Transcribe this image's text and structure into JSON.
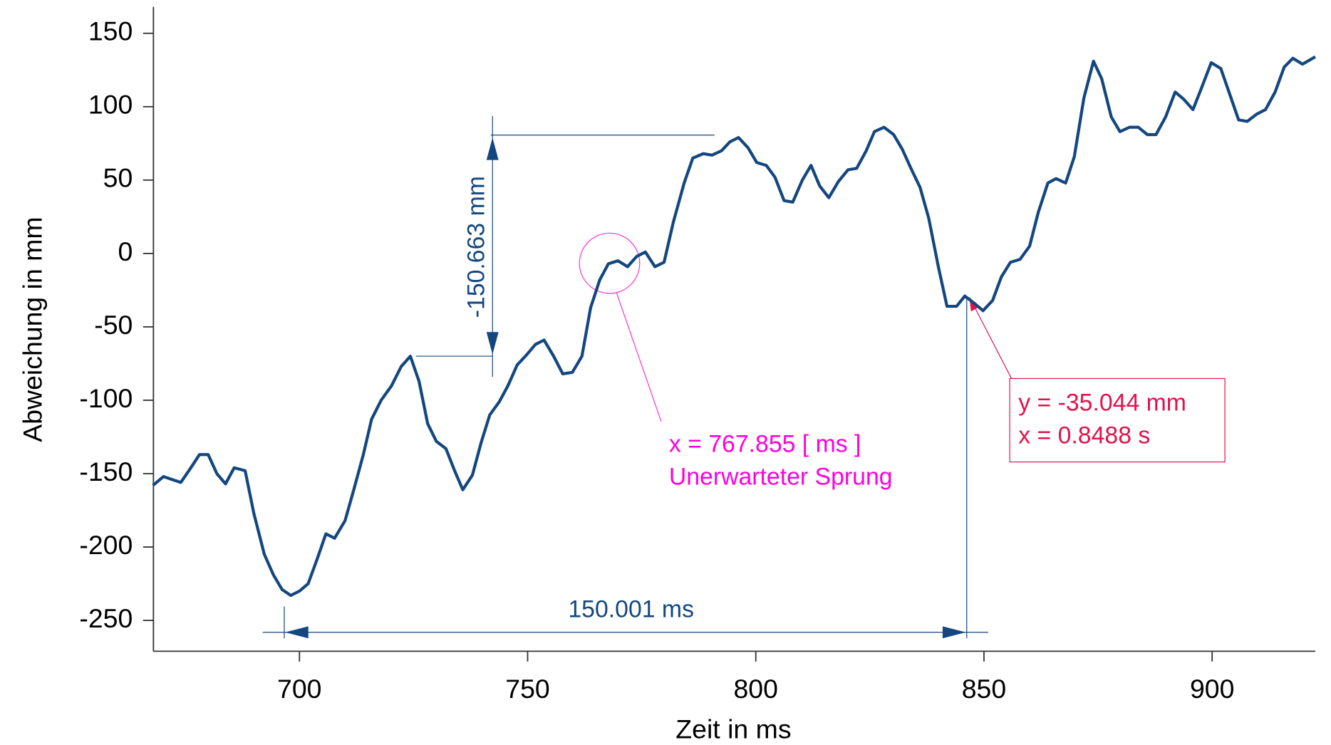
{
  "chart_data": {
    "type": "line",
    "x_label": "Zeit in ms",
    "y_label": "Abweichung in mm",
    "color": "#14477f",
    "x": [
      667.9,
      670.2,
      672.1,
      674,
      676.2,
      678.1,
      680,
      681.9,
      683.8,
      685.7,
      688.1,
      690,
      692.3,
      694.3,
      696.2,
      698.1,
      700,
      701.9,
      703.9,
      705.8,
      707.7,
      710,
      711.9,
      714,
      715.8,
      717.9,
      720.2,
      722.3,
      724.3,
      726.2,
      728.1,
      730,
      732.1,
      734,
      735.8,
      737.9,
      739.8,
      741.7,
      743.8,
      745.7,
      747.7,
      749.8,
      751.7,
      753.6,
      755.7,
      757.7,
      759.8,
      761.9,
      763.8,
      765.8,
      767.7,
      769.8,
      771.9,
      773.9,
      775.8,
      777.9,
      779.9,
      781.9,
      784.3,
      786.2,
      788.5,
      790.4,
      792.5,
      794.3,
      796.2,
      798.3,
      800.2,
      802.3,
      804.2,
      806.2,
      808.1,
      810.2,
      812.1,
      814,
      816,
      818.1,
      820.2,
      822.1,
      824.2,
      826,
      828.1,
      830.2,
      832.1,
      834,
      836,
      837.9,
      840,
      841.9,
      844,
      845.8,
      847.9,
      849.8,
      851.9,
      853.8,
      855.8,
      857.9,
      860,
      861.9,
      864,
      865.8,
      867.9,
      869.8,
      871.9,
      874,
      875.8,
      877.9,
      879.8,
      881.9,
      883.8,
      885.8,
      887.7,
      889.8,
      891.9,
      893.8,
      895.8,
      897.7,
      899.8,
      901.9,
      903.8,
      905.8,
      907.7,
      909.8,
      911.7,
      913.8,
      915.8,
      917.7,
      919.8,
      922.6
    ],
    "values": [
      -158,
      -152,
      -154,
      -156,
      -146,
      -137,
      -137,
      -150,
      -157,
      -146,
      -148,
      -177,
      -205,
      -219,
      -229,
      -233,
      -230,
      -225,
      -208,
      -191,
      -194,
      -182,
      -161,
      -137,
      -113,
      -100,
      -90,
      -77,
      -70,
      -87,
      -116,
      -128,
      -133,
      -148,
      -161,
      -151,
      -129,
      -110,
      -101,
      -90,
      -76,
      -69,
      -62,
      -59,
      -70,
      -82,
      -81,
      -70,
      -37,
      -18,
      -7,
      -5,
      -9,
      -2,
      1,
      -9,
      -6,
      21,
      48,
      65,
      68,
      67,
      70,
      76,
      79,
      72,
      62,
      60,
      52,
      36,
      35,
      50,
      60,
      46,
      38,
      49,
      57,
      58,
      70,
      83,
      86,
      81,
      71,
      58,
      45,
      24,
      -9,
      -36,
      -36,
      -29,
      -34,
      -39,
      -32,
      -16,
      -6,
      -4,
      5,
      28,
      48,
      51,
      48,
      66,
      106,
      131,
      119,
      93,
      83,
      86,
      86,
      81,
      81,
      93,
      110,
      105,
      98,
      113,
      130,
      126,
      109,
      91,
      90,
      95,
      98,
      110,
      127,
      133,
      129,
      134
    ],
    "xlim": [
      668,
      922.6
    ],
    "ylim": [
      -271,
      168
    ],
    "xticks": [
      700,
      750,
      800,
      850,
      900
    ],
    "yticks": [
      150,
      100,
      50,
      0,
      -50,
      -100,
      -150,
      -200,
      -250
    ],
    "annotations": [
      "-150.663 mm",
      "150.001 ms",
      "x = 767.855 [ ms ]",
      "Unerwarteter Sprung",
      "y = -35.044 mm",
      "x = 0.8488 s"
    ]
  }
}
